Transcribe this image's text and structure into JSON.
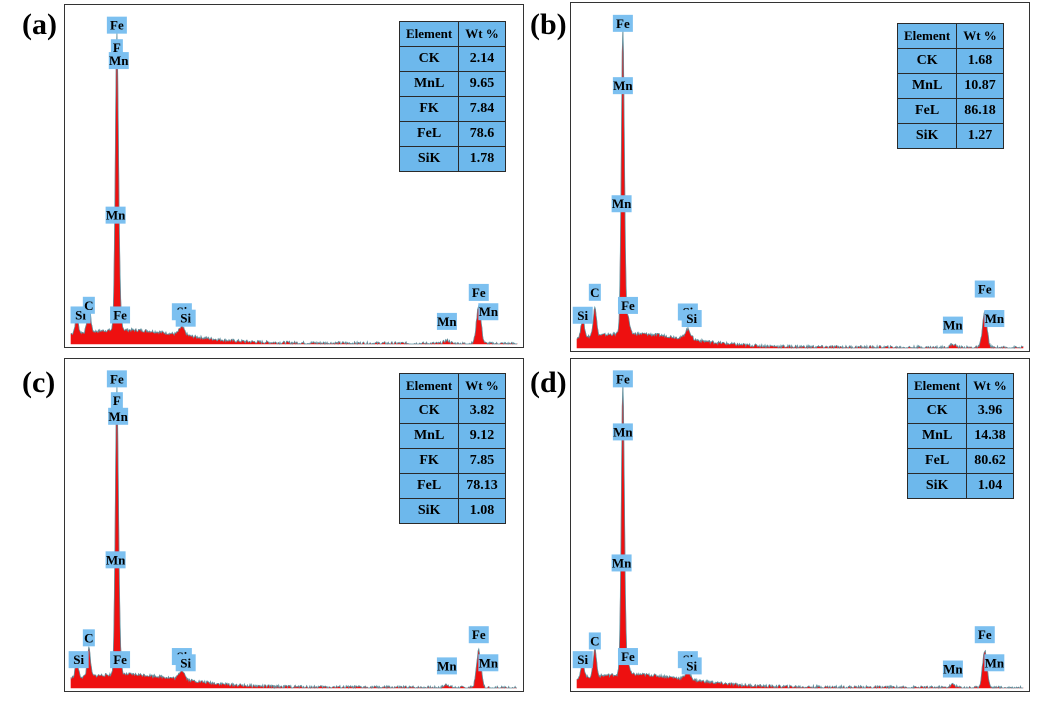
{
  "colors": {
    "spectrum_fill": "#ee1010",
    "baseline": "#26c6da",
    "tag_bg": "#7cc0f0",
    "table_bg": "#6db8ec",
    "marker": "#3030ff"
  },
  "chart_data": [
    {
      "panel": "(a)",
      "type": "area",
      "table": {
        "headers": [
          "Element",
          "Wt %"
        ],
        "rows": [
          [
            "CK",
            "2.14"
          ],
          [
            "MnL",
            "9.65"
          ],
          [
            "FK",
            "7.84"
          ],
          [
            "FeL",
            "78.6"
          ],
          [
            "SiK",
            "1.78"
          ]
        ]
      },
      "peak_labels": [
        {
          "text": "Fe",
          "x": 0.72,
          "y": 0.97
        },
        {
          "text": "F",
          "x": 0.72,
          "y": 0.9
        },
        {
          "text": "Mn",
          "x": 0.75,
          "y": 0.86
        },
        {
          "text": "Mn",
          "x": 0.7,
          "y": 0.38
        },
        {
          "text": "Si",
          "x": 0.15,
          "y": 0.07
        },
        {
          "text": "C",
          "x": 0.28,
          "y": 0.1
        },
        {
          "text": "Fe",
          "x": 0.77,
          "y": 0.07
        },
        {
          "text": "Si",
          "x": 1.74,
          "y": 0.08
        },
        {
          "text": "Si",
          "x": 1.8,
          "y": 0.06
        },
        {
          "text": "Mn",
          "x": 5.9,
          "y": 0.05
        },
        {
          "text": "Fe",
          "x": 6.4,
          "y": 0.14
        },
        {
          "text": "Mn",
          "x": 6.55,
          "y": 0.08
        }
      ],
      "peaks": [
        {
          "x": 0.09,
          "h": 0.05
        },
        {
          "x": 0.28,
          "h": 0.1
        },
        {
          "x": 0.72,
          "h": 0.92
        },
        {
          "x": 0.77,
          "h": 0.05
        },
        {
          "x": 1.74,
          "h": 0.025
        },
        {
          "x": 5.9,
          "h": 0.01
        },
        {
          "x": 6.4,
          "h": 0.12
        }
      ]
    },
    {
      "panel": "(b)",
      "type": "area",
      "table": {
        "headers": [
          "Element",
          "Wt %"
        ],
        "rows": [
          [
            "CK",
            "1.68"
          ],
          [
            "MnL",
            "10.87"
          ],
          [
            "FeL",
            "86.18"
          ],
          [
            "SiK",
            "1.27"
          ]
        ]
      },
      "peak_labels": [
        {
          "text": "Fe",
          "x": 0.72,
          "y": 0.97
        },
        {
          "text": "Mn",
          "x": 0.72,
          "y": 0.78
        },
        {
          "text": "Mn",
          "x": 0.7,
          "y": 0.42
        },
        {
          "text": "Si",
          "x": 0.09,
          "y": 0.08
        },
        {
          "text": "C",
          "x": 0.28,
          "y": 0.15
        },
        {
          "text": "Fe",
          "x": 0.8,
          "y": 0.11
        },
        {
          "text": "Si",
          "x": 1.74,
          "y": 0.09
        },
        {
          "text": "Si",
          "x": 1.8,
          "y": 0.07
        },
        {
          "text": "Mn",
          "x": 5.9,
          "y": 0.05
        },
        {
          "text": "Fe",
          "x": 6.4,
          "y": 0.16
        },
        {
          "text": "Mn",
          "x": 6.55,
          "y": 0.07
        }
      ],
      "peaks": [
        {
          "x": 0.09,
          "h": 0.06
        },
        {
          "x": 0.28,
          "h": 0.09
        },
        {
          "x": 0.72,
          "h": 0.93
        },
        {
          "x": 0.8,
          "h": 0.05
        },
        {
          "x": 1.74,
          "h": 0.03
        },
        {
          "x": 5.9,
          "h": 0.01
        },
        {
          "x": 6.4,
          "h": 0.11
        }
      ]
    },
    {
      "panel": "(c)",
      "type": "area",
      "table": {
        "headers": [
          "Element",
          "Wt %"
        ],
        "rows": [
          [
            "CK",
            "3.82"
          ],
          [
            "MnL",
            "9.12"
          ],
          [
            "FK",
            "7.85"
          ],
          [
            "FeL",
            "78.13"
          ],
          [
            "SiK",
            "1.08"
          ]
        ]
      },
      "peak_labels": [
        {
          "text": "Fe",
          "x": 0.72,
          "y": 0.97
        },
        {
          "text": "F",
          "x": 0.72,
          "y": 0.9
        },
        {
          "text": "Mn",
          "x": 0.74,
          "y": 0.85
        },
        {
          "text": "Mn",
          "x": 0.7,
          "y": 0.39
        },
        {
          "text": "Si",
          "x": 0.12,
          "y": 0.07
        },
        {
          "text": "C",
          "x": 0.28,
          "y": 0.14
        },
        {
          "text": "Fe",
          "x": 0.77,
          "y": 0.07
        },
        {
          "text": "Si",
          "x": 1.74,
          "y": 0.08
        },
        {
          "text": "Si",
          "x": 1.8,
          "y": 0.06
        },
        {
          "text": "Mn",
          "x": 5.9,
          "y": 0.05
        },
        {
          "text": "Fe",
          "x": 6.4,
          "y": 0.15
        },
        {
          "text": "Mn",
          "x": 6.55,
          "y": 0.06
        }
      ],
      "peaks": [
        {
          "x": 0.09,
          "h": 0.05
        },
        {
          "x": 0.28,
          "h": 0.09
        },
        {
          "x": 0.72,
          "h": 0.92
        },
        {
          "x": 0.77,
          "h": 0.04
        },
        {
          "x": 1.74,
          "h": 0.03
        },
        {
          "x": 5.9,
          "h": 0.01
        },
        {
          "x": 6.4,
          "h": 0.12
        }
      ]
    },
    {
      "panel": "(d)",
      "type": "area",
      "table": {
        "headers": [
          "Element",
          "Wt %"
        ],
        "rows": [
          [
            "CK",
            "3.96"
          ],
          [
            "MnL",
            "14.38"
          ],
          [
            "FeL",
            "80.62"
          ],
          [
            "SiK",
            "1.04"
          ]
        ]
      },
      "peak_labels": [
        {
          "text": "Fe",
          "x": 0.72,
          "y": 0.97
        },
        {
          "text": "Mn",
          "x": 0.72,
          "y": 0.8
        },
        {
          "text": "Mn",
          "x": 0.7,
          "y": 0.38
        },
        {
          "text": "Si",
          "x": 0.09,
          "y": 0.07
        },
        {
          "text": "C",
          "x": 0.28,
          "y": 0.13
        },
        {
          "text": "Fe",
          "x": 0.8,
          "y": 0.08
        },
        {
          "text": "Si",
          "x": 1.74,
          "y": 0.07
        },
        {
          "text": "Si",
          "x": 1.8,
          "y": 0.05
        },
        {
          "text": "Mn",
          "x": 5.9,
          "y": 0.04
        },
        {
          "text": "Fe",
          "x": 6.4,
          "y": 0.15
        },
        {
          "text": "Mn",
          "x": 6.55,
          "y": 0.06
        }
      ],
      "peaks": [
        {
          "x": 0.09,
          "h": 0.05
        },
        {
          "x": 0.28,
          "h": 0.09
        },
        {
          "x": 0.72,
          "h": 0.93
        },
        {
          "x": 0.8,
          "h": 0.04
        },
        {
          "x": 1.74,
          "h": 0.025
        },
        {
          "x": 5.9,
          "h": 0.01
        },
        {
          "x": 6.4,
          "h": 0.12
        }
      ]
    }
  ]
}
